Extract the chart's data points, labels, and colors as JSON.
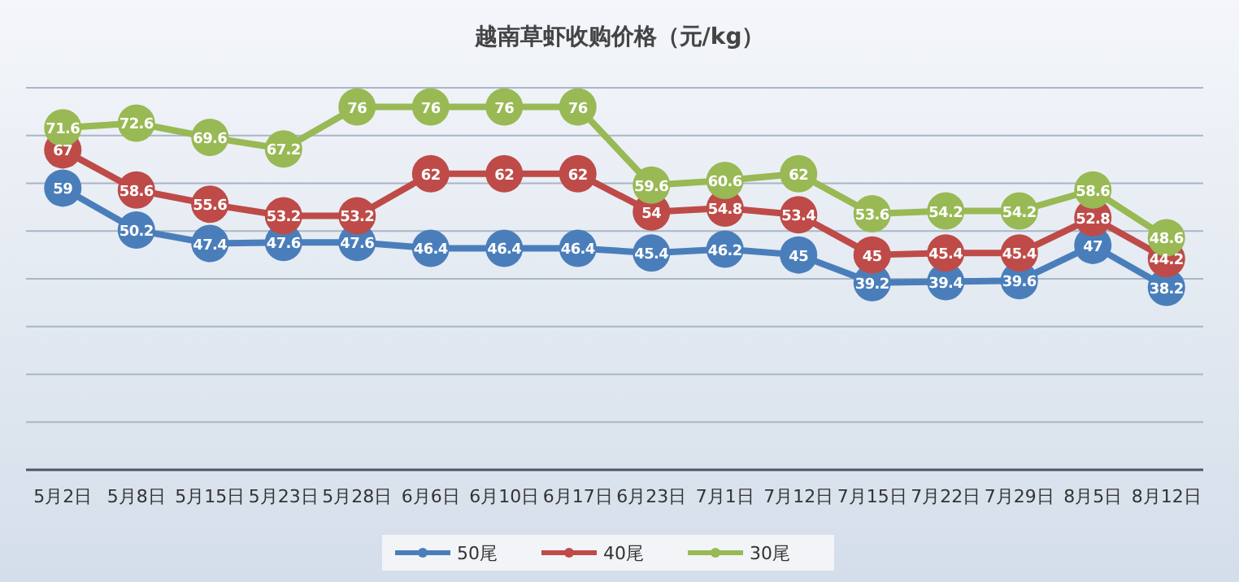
{
  "chart_data": {
    "type": "line",
    "title": "越南草虾收购价格（元/kg）",
    "categories": [
      "5月2日",
      "5月8日",
      "5月15日",
      "5月23日",
      "5月28日",
      "6月6日",
      "6月10日",
      "6月17日",
      "6月23日",
      "7月1日",
      "7月12日",
      "7月15日",
      "7月22日",
      "7月29日",
      "8月5日",
      "8月12日"
    ],
    "series": [
      {
        "name": "50尾",
        "color": "#4a7ebb",
        "values": [
          59,
          50.2,
          47.4,
          47.6,
          47.6,
          46.4,
          46.4,
          46.4,
          45.4,
          46.2,
          45,
          39.2,
          39.4,
          39.6,
          47,
          38.2
        ]
      },
      {
        "name": "40尾",
        "color": "#be4b48",
        "values": [
          67,
          58.6,
          55.6,
          53.2,
          53.2,
          62,
          62,
          62,
          54,
          54.8,
          53.4,
          45,
          45.4,
          45.4,
          52.8,
          44.2
        ]
      },
      {
        "name": "30尾",
        "color": "#98b954",
        "values": [
          71.6,
          72.6,
          69.6,
          67.2,
          76,
          76,
          76,
          76,
          59.6,
          60.6,
          62,
          53.6,
          54.2,
          54.2,
          58.6,
          48.6
        ]
      }
    ],
    "ylim": [
      0,
      80
    ],
    "yticks": [
      {
        "value": 0,
        "label": null
      },
      {
        "value": 10,
        "label": null
      },
      {
        "value": 20,
        "label": null
      },
      {
        "value": 30,
        "label": null
      },
      {
        "value": 40,
        "label": null
      },
      {
        "value": 50,
        "label": null
      },
      {
        "value": 60,
        "label": null
      },
      {
        "value": 70,
        "label": null
      },
      {
        "value": 80,
        "label": null
      }
    ],
    "tick_labels": "x",
    "grid": "y",
    "legend": "bottom",
    "marker": "circle",
    "line_style": "solid",
    "data_labels": true
  }
}
